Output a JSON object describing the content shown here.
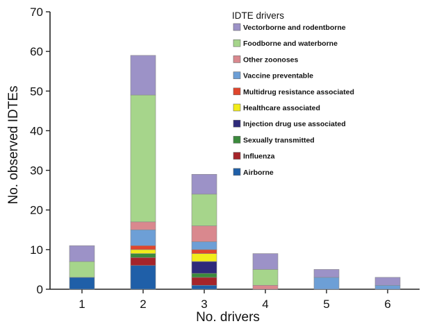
{
  "chart_data": {
    "type": "bar",
    "stacked": true,
    "categories": [
      "1",
      "2",
      "3",
      "4",
      "5",
      "6"
    ],
    "xlabel": "No. drivers",
    "ylabel": "No. observed IDTEs",
    "ylim": [
      0,
      70
    ],
    "yticks": [
      "0",
      "10",
      "20",
      "30",
      "40",
      "50",
      "60",
      "70"
    ],
    "grid": false,
    "legend": {
      "title": "IDTE drivers",
      "position": "top-right"
    },
    "series": [
      {
        "name": "Airborne",
        "color": "#1f5fa8",
        "values": [
          3,
          6,
          1,
          0,
          0,
          0
        ]
      },
      {
        "name": "Influenza",
        "color": "#a5242a",
        "values": [
          0,
          2,
          2,
          0,
          0,
          0
        ]
      },
      {
        "name": "Sexually transmitted",
        "color": "#3b8a3c",
        "values": [
          0,
          1,
          1,
          0,
          0,
          0
        ]
      },
      {
        "name": "Injection drug use associated",
        "color": "#2e2a7a",
        "values": [
          0,
          0,
          3,
          0,
          0,
          0
        ]
      },
      {
        "name": "Healthcare associated",
        "color": "#f2ec1a",
        "values": [
          0,
          1,
          2,
          0,
          0,
          0
        ]
      },
      {
        "name": "Multidrug resistance associated",
        "color": "#e0452c",
        "values": [
          0,
          1,
          1,
          0,
          0,
          0
        ]
      },
      {
        "name": "Vaccine preventable",
        "color": "#6d9fd6",
        "values": [
          0,
          4,
          2,
          0,
          3,
          1
        ]
      },
      {
        "name": "Other zoonoses",
        "color": "#d9888e",
        "values": [
          0,
          2,
          4,
          1,
          0,
          0
        ]
      },
      {
        "name": "Foodborne and waterborne",
        "color": "#a6d58b",
        "values": [
          4,
          32,
          8,
          4,
          0,
          0
        ]
      },
      {
        "name": "Vectorborne and rodentborne",
        "color": "#9c92c7",
        "values": [
          4,
          10,
          5,
          4,
          2,
          2
        ]
      }
    ]
  }
}
